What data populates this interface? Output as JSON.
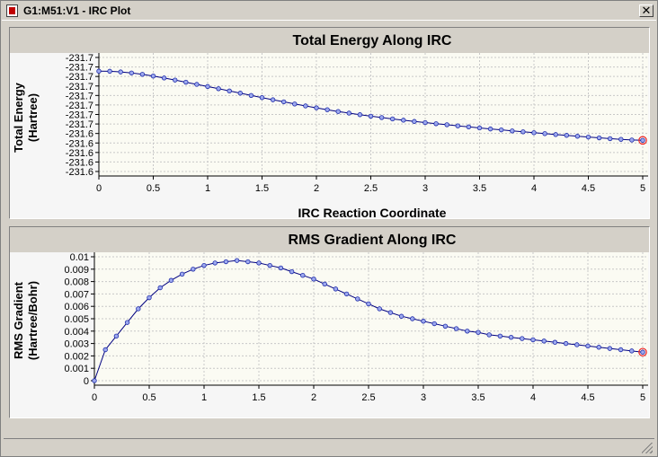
{
  "window": {
    "title": "G1:M51:V1 - IRC Plot",
    "close_label": "✕"
  },
  "colors": {
    "line": "#000080",
    "marker_fill": "#9da9ee",
    "marker_stroke": "#1e2aa8",
    "highlight": "#ee2222",
    "grid": "#c8c8c8"
  },
  "chart_data": [
    {
      "type": "line",
      "title": "Total Energy Along IRC",
      "xlabel": "IRC Reaction Coordinate",
      "ylabel": [
        "Total Energy",
        "(Hartree)"
      ],
      "x_ticks": [
        "0",
        "0.5",
        "1",
        "1.5",
        "2",
        "2.5",
        "3",
        "3.5",
        "4",
        "4.5",
        "5"
      ],
      "y_ticks": [
        "-231.6",
        "-231.6",
        "-231.6",
        "-231.6",
        "-231.6",
        "-231.7",
        "-231.7",
        "-231.7",
        "-231.7",
        "-231.7",
        "-231.7",
        "-231.7",
        "-231.7"
      ],
      "xlim": [
        0,
        5
      ],
      "ylim": [
        -231.7,
        -231.6
      ],
      "grid": true,
      "x": [
        0,
        0.1,
        0.2,
        0.3,
        0.4,
        0.5,
        0.6,
        0.7,
        0.8,
        0.9,
        1.0,
        1.1,
        1.2,
        1.3,
        1.4,
        1.5,
        1.6,
        1.7,
        1.8,
        1.9,
        2.0,
        2.1,
        2.2,
        2.3,
        2.4,
        2.5,
        2.6,
        2.7,
        2.8,
        2.9,
        3.0,
        3.1,
        3.2,
        3.3,
        3.4,
        3.5,
        3.6,
        3.7,
        3.8,
        3.9,
        4.0,
        4.1,
        4.2,
        4.3,
        4.4,
        4.5,
        4.6,
        4.7,
        4.8,
        4.9,
        5.0
      ],
      "y": [
        -231.612,
        -231.6121,
        -231.6127,
        -231.6136,
        -231.6148,
        -231.6163,
        -231.618,
        -231.6198,
        -231.6217,
        -231.6236,
        -231.6255,
        -231.6274,
        -231.6294,
        -231.6313,
        -231.6333,
        -231.6352,
        -231.6371,
        -231.6389,
        -231.6408,
        -231.6425,
        -231.6442,
        -231.6458,
        -231.6474,
        -231.6488,
        -231.6502,
        -231.6515,
        -231.6527,
        -231.6539,
        -231.655,
        -231.6561,
        -231.6571,
        -231.6581,
        -231.659,
        -231.66,
        -231.6609,
        -231.6618,
        -231.6627,
        -231.6635,
        -231.6644,
        -231.6652,
        -231.666,
        -231.6668,
        -231.6676,
        -231.6683,
        -231.6691,
        -231.6698,
        -231.6705,
        -231.6712,
        -231.6718,
        -231.6724,
        -231.6727
      ],
      "highlight_index": 50
    },
    {
      "type": "line",
      "title": "RMS Gradient Along IRC",
      "xlabel": "IRC Reaction Coordinate",
      "ylabel": [
        "RMS Gradient",
        "(Hartree/Bohr)"
      ],
      "x_ticks": [
        "0",
        "0.5",
        "1",
        "1.5",
        "2",
        "2.5",
        "3",
        "3.5",
        "4",
        "4.5",
        "5"
      ],
      "y_ticks": [
        "0",
        "0.001",
        "0.002",
        "0.003",
        "0.004",
        "0.005",
        "0.006",
        "0.007",
        "0.008",
        "0.009",
        "0.01"
      ],
      "xlim": [
        0,
        5
      ],
      "ylim": [
        0,
        0.01
      ],
      "grid": true,
      "x": [
        0,
        0.1,
        0.2,
        0.3,
        0.4,
        0.5,
        0.6,
        0.7,
        0.8,
        0.9,
        1.0,
        1.1,
        1.2,
        1.3,
        1.4,
        1.5,
        1.6,
        1.7,
        1.8,
        1.9,
        2.0,
        2.1,
        2.2,
        2.3,
        2.4,
        2.5,
        2.6,
        2.7,
        2.8,
        2.9,
        3.0,
        3.1,
        3.2,
        3.3,
        3.4,
        3.5,
        3.6,
        3.7,
        3.8,
        3.9,
        4.0,
        4.1,
        4.2,
        4.3,
        4.4,
        4.5,
        4.6,
        4.7,
        4.8,
        4.9,
        5.0
      ],
      "y": [
        0.0,
        0.0025,
        0.0036,
        0.0047,
        0.0058,
        0.0067,
        0.0075,
        0.0081,
        0.0086,
        0.009,
        0.0093,
        0.0095,
        0.0096,
        0.0097,
        0.0096,
        0.0095,
        0.0093,
        0.0091,
        0.0088,
        0.0085,
        0.0082,
        0.0078,
        0.0074,
        0.007,
        0.0066,
        0.0062,
        0.0058,
        0.0055,
        0.0052,
        0.005,
        0.0048,
        0.0046,
        0.0044,
        0.0042,
        0.004,
        0.0039,
        0.0037,
        0.0036,
        0.0035,
        0.0034,
        0.0033,
        0.0032,
        0.0031,
        0.003,
        0.0029,
        0.0028,
        0.0027,
        0.0026,
        0.0025,
        0.0024,
        0.0023
      ],
      "highlight_index": 50
    }
  ]
}
